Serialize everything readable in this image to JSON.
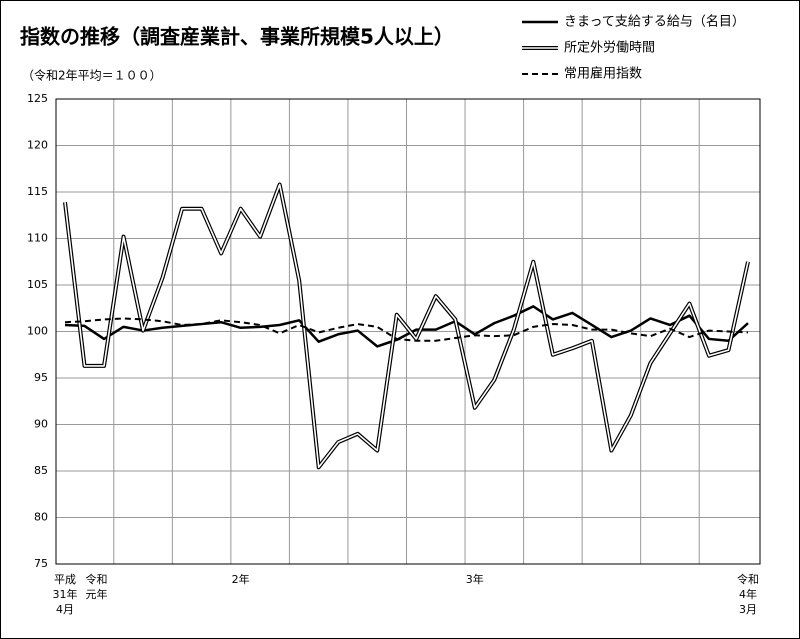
{
  "chart_data": {
    "type": "line",
    "title": "指数の推移（調査産業計、事業所規模5人以上）",
    "subtitle": "（令和2年平均＝１００）",
    "categories": [
      "平成\n31年\n4月",
      "令和\n元年",
      null,
      null,
      null,
      null,
      null,
      null,
      null,
      "2年",
      null,
      null,
      null,
      null,
      null,
      null,
      null,
      null,
      null,
      null,
      null,
      "3年",
      null,
      null,
      null,
      null,
      null,
      null,
      null,
      null,
      null,
      null,
      null,
      null,
      null,
      "令和\n4年\n3月"
    ],
    "series": [
      {
        "name": "きまって支給する給与（名目）",
        "color": "#000000",
        "style": "solid",
        "values": [
          100.7,
          100.6,
          99.2,
          100.5,
          100.1,
          100.4,
          100.6,
          100.8,
          101.0,
          100.4,
          100.5,
          100.7,
          101.2,
          98.9,
          99.7,
          100.1,
          98.4,
          99.1,
          100.2,
          100.2,
          101.1,
          99.7,
          100.9,
          101.7,
          102.7,
          101.3,
          102.0,
          100.7,
          99.4,
          100.1,
          101.4,
          100.7,
          101.7,
          99.2,
          99.0,
          100.9
        ]
      },
      {
        "name": "所定外労働時間",
        "color": "#000000",
        "style": "double",
        "values": [
          113.9,
          96.3,
          96.3,
          110.2,
          100.1,
          105.8,
          113.2,
          113.2,
          108.4,
          113.2,
          110.2,
          115.8,
          105.5,
          85.4,
          88.1,
          89.0,
          87.2,
          101.8,
          99.2,
          103.8,
          101.3,
          91.8,
          94.8,
          100.2,
          107.5,
          97.5,
          98.2,
          99.0,
          87.2,
          91.0,
          96.6,
          99.8,
          103.0,
          97.4,
          98.0,
          107.5
        ]
      },
      {
        "name": "常用雇用指数",
        "color": "#000000",
        "style": "dashed",
        "values": [
          101.0,
          101.1,
          101.3,
          101.4,
          101.3,
          101.1,
          100.7,
          100.8,
          101.2,
          101.0,
          100.7,
          99.8,
          100.7,
          99.9,
          100.4,
          100.8,
          100.5,
          99.2,
          99.0,
          99.0,
          99.3,
          99.6,
          99.5,
          99.6,
          100.5,
          100.8,
          100.7,
          100.2,
          100.2,
          99.8,
          99.5,
          100.3,
          99.4,
          100.1,
          100.0,
          99.9
        ]
      }
    ],
    "ylim": [
      75,
      125
    ],
    "yticks": [
      75,
      80,
      85,
      90,
      95,
      100,
      105,
      110,
      115,
      120,
      125
    ],
    "grid": true
  }
}
